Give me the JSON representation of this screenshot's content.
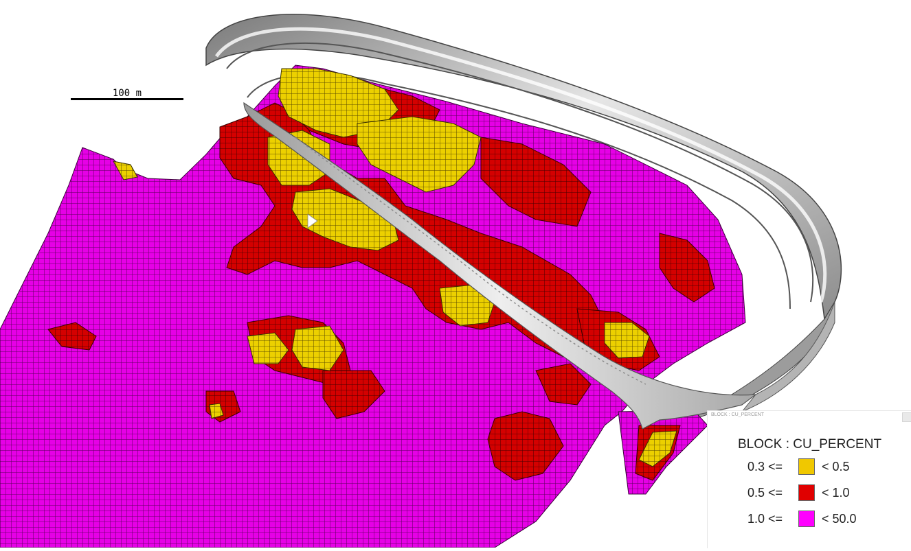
{
  "title": "",
  "scale_bar": {
    "label": "100 m"
  },
  "legend": {
    "caption": "BLOCK : CU_PERCENT",
    "title": "BLOCK : CU_PERCENT",
    "items": [
      {
        "lower": "0.3 <=",
        "upper": "< 0.5",
        "color": "#f0c800"
      },
      {
        "lower": "0.5 <=",
        "upper": "< 1.0",
        "color": "#e00000"
      },
      {
        "lower": "1.0 <=",
        "upper": "< 50.0",
        "color": "#ff00ff"
      }
    ]
  },
  "colors": {
    "high_grade_block": "#ecd000",
    "mid_grade_block": "#d20000",
    "low_grade_block": "#e800e8",
    "pit_shell": "#c8c8c8"
  }
}
